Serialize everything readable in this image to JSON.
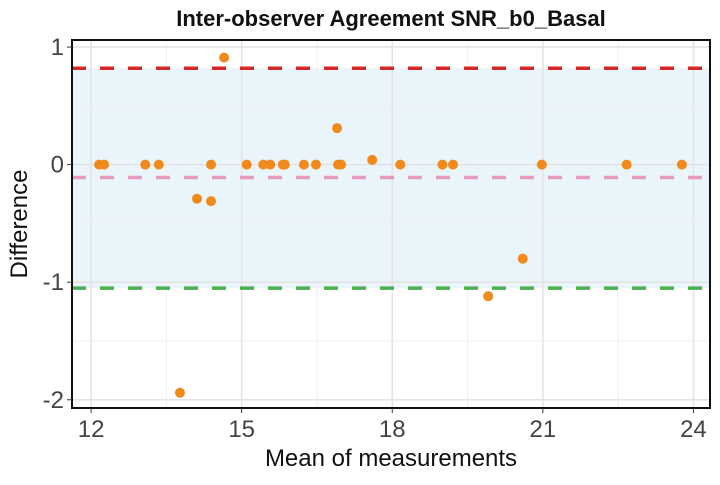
{
  "chart_data": {
    "type": "scatter",
    "title": "Inter-observer Agreement SNR_b0_Basal",
    "xlabel": "Mean of measurements",
    "ylabel": "Difference",
    "xlim": [
      11.62,
      24.33
    ],
    "ylim": [
      -2.07,
      1.06
    ],
    "xticks": [
      12,
      15,
      18,
      21,
      24
    ],
    "yticks": [
      1,
      0,
      -1,
      -2
    ],
    "grid": true,
    "reference_lines": [
      {
        "name": "upper-limit",
        "value": 0.82,
        "color": "#d62728"
      },
      {
        "name": "mean-difference",
        "value": -0.11,
        "color": "#e899c0"
      },
      {
        "name": "lower-limit",
        "value": -1.05,
        "color": "#4caf50"
      }
    ],
    "band": {
      "from": -1.05,
      "to": 0.82,
      "color": "#eaf4fb"
    },
    "point_color": "#f08a1c",
    "points": [
      {
        "x": 12.16,
        "y": 0
      },
      {
        "x": 12.26,
        "y": 0
      },
      {
        "x": 13.08,
        "y": 0
      },
      {
        "x": 13.35,
        "y": 0
      },
      {
        "x": 14.39,
        "y": 0
      },
      {
        "x": 15.1,
        "y": 0
      },
      {
        "x": 15.43,
        "y": 0
      },
      {
        "x": 15.57,
        "y": 0
      },
      {
        "x": 15.82,
        "y": 0
      },
      {
        "x": 15.86,
        "y": 0
      },
      {
        "x": 16.24,
        "y": 0
      },
      {
        "x": 16.48,
        "y": 0
      },
      {
        "x": 16.92,
        "y": 0
      },
      {
        "x": 16.98,
        "y": 0
      },
      {
        "x": 18.16,
        "y": 0
      },
      {
        "x": 19.0,
        "y": 0
      },
      {
        "x": 19.21,
        "y": 0
      },
      {
        "x": 20.98,
        "y": 0
      },
      {
        "x": 22.67,
        "y": 0
      },
      {
        "x": 23.77,
        "y": 0
      },
      {
        "x": 14.65,
        "y": 0.91
      },
      {
        "x": 16.9,
        "y": 0.31
      },
      {
        "x": 17.6,
        "y": 0.04
      },
      {
        "x": 14.11,
        "y": -0.29
      },
      {
        "x": 14.39,
        "y": -0.31
      },
      {
        "x": 13.77,
        "y": -1.94
      },
      {
        "x": 19.91,
        "y": -1.12
      },
      {
        "x": 20.6,
        "y": -0.8
      }
    ]
  }
}
